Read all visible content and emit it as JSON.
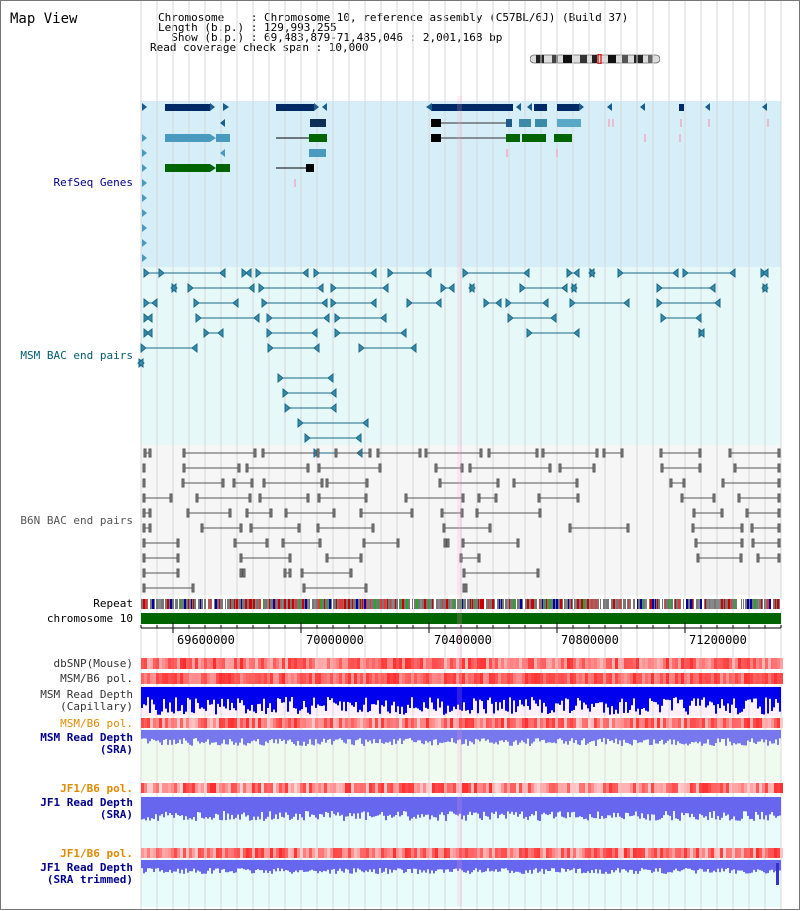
{
  "view": {
    "title": "Map View"
  },
  "header": {
    "chromosome": "Chromosome    : Chromosome 10, reference assembly (C57BL/6J) (Build 37)",
    "length": "Length (b.p.) : 129,993,255",
    "show": "  Show (b.p.) : 69,483,879-71,485,046 : 2,001,168 bp",
    "coverage": "Read coverage check span : 10,000"
  },
  "tracks": {
    "refseq": "RefSeq Genes",
    "msm_bac": "MSM BAC end pairs",
    "b6n_bac": "B6N BAC end pairs",
    "repeat": "Repeat",
    "chromosome": "chromosome 10",
    "dbsnp": "dbSNP(Mouse)",
    "msm_b6_pol_1": "MSM/B6 pol.",
    "msm_read_depth_cap": "MSM Read Depth\n(Capillary)",
    "msm_b6_pol_2": "MSM/B6 pol.",
    "msm_read_depth_sra": "MSM Read Depth\n(SRA)",
    "jf1_b6_pol_1": "JF1/B6 pol.",
    "jf1_read_depth_sra": "JF1 Read Depth\n(SRA)",
    "jf1_b6_pol_2": "JF1/B6 pol.",
    "jf1_read_depth_trim": "JF1 Read Depth\n(SRA trimmed)"
  },
  "axis": {
    "ticks": [
      "69600000",
      "70000000",
      "70400000",
      "70800000",
      "71200000"
    ]
  },
  "colors": {
    "refseq_bg": "#d6eef8",
    "msm_bg": "#e6f8f8",
    "b6n_bg": "#f6f6f6",
    "chromosome": "#006400",
    "label_blue": "#00008b",
    "label_teal": "#005a6e",
    "label_orange": "#e08a00"
  }
}
